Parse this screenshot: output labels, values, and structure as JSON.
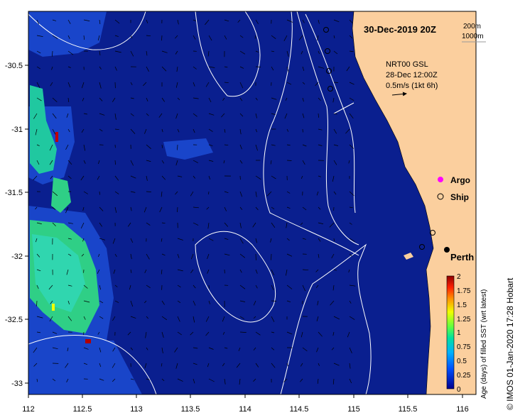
{
  "title": "30-Dec-2019 20Z",
  "depth_contours": [
    "200m",
    "1000m"
  ],
  "current_product": "NRT00 GSL",
  "current_date": "28-Dec 12:00Z",
  "current_scale": "0.5m/s (1kt 6h)",
  "markers": {
    "argo": "Argo",
    "ship": "Ship"
  },
  "city": "Perth",
  "credit": "© IMOS 01-Jan-2020 17:28 Hobart",
  "x_ticks": [
    "112",
    "112.5",
    "113",
    "113.5",
    "114",
    "114.5",
    "115",
    "115.5",
    "116"
  ],
  "y_ticks": [
    "-30.5",
    "-31",
    "-31.5",
    "-32",
    "-32.5",
    "-33"
  ],
  "colorbar": {
    "label": "Age (days) of filled SST (wrt latest)",
    "ticks": [
      "2",
      "1.75",
      "1.5",
      "1.25",
      "1",
      "0.75",
      "0.5",
      "0.25",
      "0"
    ]
  },
  "colors": {
    "ocean": "#0a1f8f",
    "land": "#fbcf9e",
    "shelf_patch": "#1d4fd8",
    "age_fill": "#2fcf86",
    "argo_marker": "#ff00ff"
  },
  "icons": [
    "argo-marker-icon",
    "ship-marker-icon",
    "current-arrow-icon"
  ]
}
